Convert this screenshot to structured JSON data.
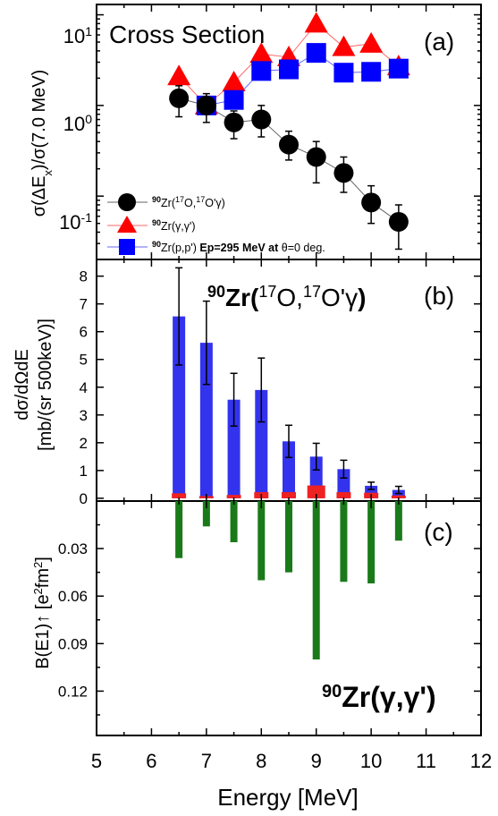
{
  "chart_data": [
    {
      "panel_label": "(a)",
      "type": "scatter",
      "log_y": true,
      "ylim": [
        0.02,
        13
      ],
      "xlim": [
        5,
        12
      ],
      "title": "Cross Section",
      "ylabel": "σ(ΔEx)/σ(7.0 MeV)",
      "ytick_labels": [
        "10-1",
        "100",
        "101"
      ],
      "legend_position": "bottom-left",
      "series": [
        {
          "name": "90Zr(17O,17O'γ)",
          "marker": "circle",
          "color": "#000000",
          "x": [
            6.5,
            7.0,
            7.5,
            8.0,
            8.5,
            9.0,
            9.5,
            10.0,
            10.5
          ],
          "y": [
            1.2,
            1.0,
            0.65,
            0.7,
            0.37,
            0.27,
            0.18,
            0.085,
            0.052
          ],
          "err_low": [
            0.45,
            0.35,
            0.22,
            0.25,
            0.12,
            0.13,
            0.07,
            0.035,
            0.026
          ],
          "err_high": [
            0.45,
            0.35,
            0.22,
            0.3,
            0.15,
            0.13,
            0.09,
            0.045,
            0.028
          ]
        },
        {
          "name": "90Zr(γ,γ')",
          "marker": "triangle",
          "color": "#ff0000",
          "x": [
            6.5,
            7.0,
            7.5,
            8.0,
            8.5,
            9.0,
            9.5,
            10.0,
            10.5
          ],
          "y": [
            2.1,
            1.0,
            1.8,
            3.7,
            3.4,
            8.0,
            4.4,
            4.8,
            2.7
          ]
        },
        {
          "name": "90Zr(p,p') Ep=295 MeV at θ=0 deg.",
          "marker": "square",
          "color": "#0000ff",
          "x": [
            7.0,
            7.5,
            8.0,
            8.5,
            9.0,
            9.5,
            10.0,
            10.5
          ],
          "y": [
            1.0,
            1.15,
            2.4,
            2.5,
            3.8,
            2.3,
            2.35,
            2.55
          ]
        }
      ]
    },
    {
      "panel_label": "(b)",
      "type": "bar",
      "xlim": [
        5,
        12
      ],
      "ylim": [
        -0.1,
        8.6
      ],
      "title": "90Zr(17O,17O'γ)",
      "ylabel_line1": "dσ/dΩdE",
      "ylabel_line2": "[mb/(sr 500keV)]",
      "ytick_labels": [
        "0",
        "1",
        "2",
        "3",
        "4",
        "5",
        "6",
        "7",
        "8"
      ],
      "series": [
        {
          "color": "#3333ee",
          "x": [
            6.5,
            7.0,
            7.5,
            8.0,
            8.5,
            9.0,
            9.5,
            10.0,
            10.5
          ],
          "values": [
            6.55,
            5.6,
            3.55,
            3.9,
            2.05,
            1.5,
            1.05,
            0.45,
            0.3
          ],
          "err": [
            1.75,
            1.5,
            0.95,
            1.15,
            0.58,
            0.48,
            0.32,
            0.13,
            0.13
          ]
        },
        {
          "color": "#ee2222",
          "x": [
            6.5,
            7.0,
            7.5,
            8.0,
            8.5,
            9.0,
            9.5,
            10.0,
            10.5
          ],
          "values": [
            0.18,
            0.08,
            0.12,
            0.22,
            0.22,
            0.46,
            0.22,
            0.2,
            0.1
          ]
        }
      ]
    },
    {
      "panel_label": "(c)",
      "type": "bar",
      "xlim": [
        5,
        12
      ],
      "ylim": [
        0,
        0.148
      ],
      "inverted_y": true,
      "title": "90Zr(γ,γ')",
      "ylabel": "B(E1)↑ [e2fm2]",
      "ytick_labels": [
        "0.03",
        "0.06",
        "0.09",
        "0.12"
      ],
      "xlabel": "Energy [MeV]",
      "xtick_labels": [
        "5",
        "6",
        "7",
        "8",
        "9",
        "10",
        "11",
        "12"
      ],
      "series": [
        {
          "color": "#1a7a1a",
          "x": [
            6.5,
            7.0,
            7.5,
            8.0,
            8.5,
            9.0,
            9.5,
            10.0,
            10.5
          ],
          "values": [
            0.036,
            0.016,
            0.026,
            0.05,
            0.045,
            0.1,
            0.051,
            0.052,
            0.025
          ]
        }
      ]
    }
  ]
}
